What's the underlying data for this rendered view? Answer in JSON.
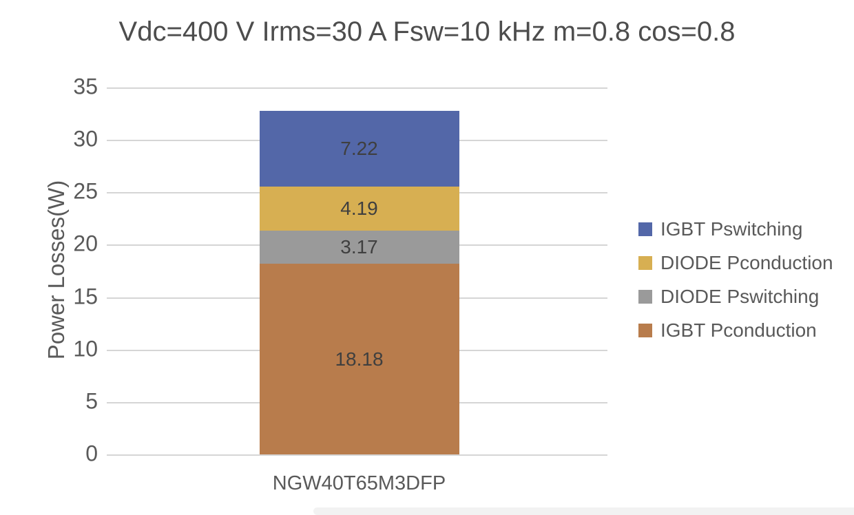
{
  "chart_data": {
    "type": "bar",
    "stacked": true,
    "stack_direction": "bottom-to-top",
    "title": "Vdc=400 V Irms=30 A Fsw=10 kHz m=0.8 cos=0.8",
    "ylabel": "Power Losses(W)",
    "xlabel": "",
    "categories": [
      "NGW40T65M3DFP"
    ],
    "ylim": [
      0,
      35
    ],
    "yticks": [
      0,
      5,
      10,
      15,
      20,
      25,
      30,
      35
    ],
    "grid": true,
    "legend_position": "right",
    "series": [
      {
        "name": "IGBT Pconduction",
        "values": [
          18.18
        ],
        "label": "18.18",
        "color": "#B87C4C"
      },
      {
        "name": "DIODE Pswitching",
        "values": [
          3.17
        ],
        "label": "3.17",
        "color": "#9A9A9A"
      },
      {
        "name": "DIODE Pconduction",
        "values": [
          4.19
        ],
        "label": "4.19",
        "color": "#D7AF52"
      },
      {
        "name": "IGBT Pswitching",
        "values": [
          7.22
        ],
        "label": "7.22",
        "color": "#5367A8"
      }
    ],
    "legend_order": [
      "IGBT Pswitching",
      "DIODE Pconduction",
      "DIODE Pswitching",
      "IGBT Pconduction"
    ],
    "total": 32.76,
    "grid_color": "#D5D5D5",
    "title_color": "#4D4D4D",
    "axis_text_color": "#595959",
    "data_label_color": "#3F3F3F"
  }
}
